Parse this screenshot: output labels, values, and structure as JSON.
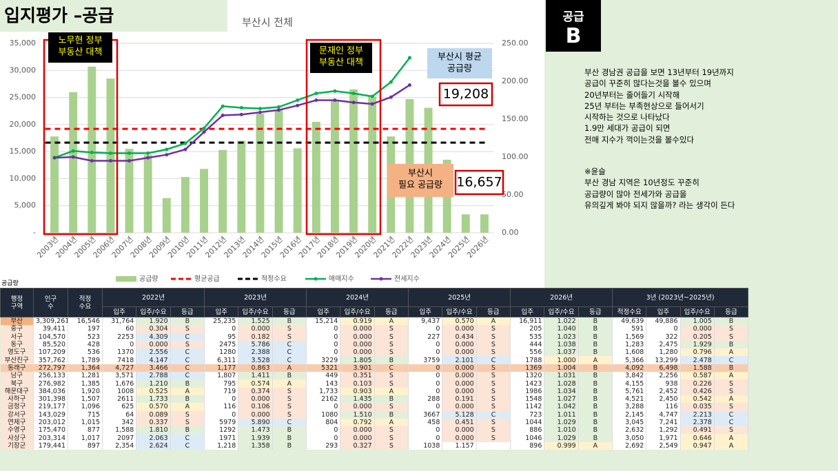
{
  "header": {
    "title": "입지평가 –공급",
    "badge": [
      "공급",
      "B"
    ]
  },
  "chart_data": {
    "type": "combo",
    "subtitle": "부산시 전체",
    "categories": [
      "2003년",
      "2004년",
      "2005년",
      "2006년",
      "2007년",
      "2008년",
      "2009년",
      "2010년",
      "2011년",
      "2012년",
      "2013년",
      "2014년",
      "2015년",
      "2016년",
      "2017년",
      "2018년",
      "2019년",
      "2020년",
      "2021년",
      "2022년",
      "2023년",
      "2024년",
      "2025년",
      "2026년"
    ],
    "series": [
      {
        "name": "공급량",
        "type": "bar",
        "color": "#a9d18e",
        "values": [
          17800,
          26000,
          30700,
          28500,
          15500,
          14400,
          6400,
          10300,
          11800,
          15300,
          17000,
          22000,
          22700,
          15600,
          20500,
          24600,
          26500,
          25200,
          17800,
          24700,
          23100,
          13500,
          3400,
          3400
        ]
      },
      {
        "name": "매매지수",
        "type": "line",
        "axis": "y2",
        "color": "#00b050",
        "values": [
          99,
          108,
          106,
          105,
          105,
          105,
          110,
          118,
          138,
          167,
          165,
          164,
          166,
          175,
          184,
          187,
          184,
          180,
          199,
          231,
          null,
          null,
          null,
          null
        ]
      },
      {
        "name": "전세지수",
        "type": "line",
        "axis": "y2",
        "color": "#7030a0",
        "values": [
          99,
          100,
          95,
          95,
          95,
          99,
          103,
          110,
          133,
          155,
          156,
          159,
          162,
          168,
          175,
          175,
          172,
          170,
          179,
          195,
          null,
          null,
          null,
          null
        ]
      }
    ],
    "reference_lines": [
      {
        "name": "평균공급",
        "color": "#ff0000",
        "value": 19208,
        "label": "19,208"
      },
      {
        "name": "적정수요",
        "color": "#000000",
        "value": 16657,
        "label": "16,657"
      }
    ],
    "ylim": [
      0,
      35000
    ],
    "yticks": [
      {
        "value": 0,
        "label": "-"
      },
      {
        "value": 5000,
        "label": "5,000"
      },
      {
        "value": 10000,
        "label": "10,000"
      },
      {
        "value": 15000,
        "label": "15,000"
      },
      {
        "value": 20000,
        "label": "20,000"
      },
      {
        "value": 25000,
        "label": "25,000"
      },
      {
        "value": 30000,
        "label": "30,000"
      },
      {
        "value": 35000,
        "label": "35,000"
      }
    ],
    "y2lim": [
      0,
      250
    ],
    "y2ticks": [
      {
        "value": 0,
        "label": "0.00"
      },
      {
        "value": 50,
        "label": "50.00"
      },
      {
        "value": 100,
        "label": "100.00"
      },
      {
        "value": 150,
        "label": "150.00"
      },
      {
        "value": 200,
        "label": "200.00"
      },
      {
        "value": 250,
        "label": "250.00"
      }
    ],
    "grid": true,
    "legend": "bottom",
    "annotations": [
      {
        "text": [
          "노무현 정부",
          "부동산 대책"
        ]
      },
      {
        "text": [
          "문재인 정부",
          "부동산 대책"
        ]
      },
      {
        "text": [
          "부산시 평균",
          "공급량"
        ]
      },
      {
        "text": [
          "부산시",
          "필요 공급량"
        ]
      }
    ]
  },
  "notes": [
    "부산 경남권 공급을 보면 13년부터 19년까지",
    "공급이 꾸준히 많다는것을 볼수 있으며",
    "20년부터는 줄어들기 시작해",
    "25년 부터는 부족현상으로 들어서기",
    "시작하는 것으로 나타났다",
    "1.9만 세대가 공급이 되면",
    "전매 지수가 꺽이는것을 볼수있다"
  ],
  "notes2": [
    "※윤슬",
    "부산 경남 지역은 10년정도 꾸준히",
    "공급량이 많아 전세가와 공급을",
    "유의깊게 봐야 되지 않을까? 라는 생각이 든다"
  ],
  "table": {
    "caption": "공급량",
    "top": [
      "행정\n구역",
      "인구\n수",
      "적정\n수요",
      "2022년",
      "2023년",
      "2024년",
      "2025년",
      "2026년",
      "3년 (2023년~2025년)"
    ],
    "sub_year": [
      "입주",
      "입주/수요",
      "등급"
    ],
    "sub_3yr": [
      "적정수요",
      "입주",
      "입주/수요",
      "등급"
    ],
    "rows": [
      [
        "부산",
        "3,309,261",
        "16,546",
        "31,764",
        "1.920",
        "B",
        "25,235",
        "1.525",
        "B",
        "15,214",
        "0.919",
        "A",
        "9,437",
        "0.570",
        "A",
        "16,911",
        "1.022",
        "B",
        "49,639",
        "49,886",
        "1.005",
        "B"
      ],
      [
        "중구",
        "39,411",
        "197",
        "60",
        "0.304",
        "S",
        "0",
        "0.000",
        "S",
        "0",
        "0.000",
        "S",
        "0",
        "0.000",
        "S",
        "205",
        "1.040",
        "B",
        "591",
        "0",
        "0.000",
        "S"
      ],
      [
        "서구",
        "104,570",
        "523",
        "2253",
        "4.309",
        "C",
        "95",
        "0.182",
        "S",
        "0",
        "0.000",
        "S",
        "227",
        "0.434",
        "S",
        "535",
        "1.023",
        "B",
        "1,569",
        "322",
        "0.205",
        "S"
      ],
      [
        "동구",
        "85,520",
        "428",
        "0",
        "0.000",
        "S",
        "2475",
        "5.786",
        "C",
        "0",
        "0.000",
        "S",
        "0",
        "0.000",
        "S",
        "444",
        "1.038",
        "B",
        "1,283",
        "2,475",
        "1.929",
        "B"
      ],
      [
        "영도구",
        "107,209",
        "536",
        "1370",
        "2.556",
        "C",
        "1280",
        "2.388",
        "C",
        "0",
        "0.000",
        "S",
        "0",
        "0.000",
        "S",
        "556",
        "1.037",
        "B",
        "1,608",
        "1,280",
        "0.796",
        "A"
      ],
      [
        "부산진구",
        "357,762",
        "1,789",
        "7418",
        "4.147",
        "C",
        "6,311",
        "3.528",
        "C",
        "3229",
        "1.805",
        "B",
        "3759",
        "2.101",
        "C",
        "1788",
        "1.000",
        "A",
        "5,366",
        "13,299",
        "2.478",
        "C"
      ],
      [
        "동래구",
        "272,797",
        "1,364",
        "4,727",
        "3.466",
        "C",
        "1,177",
        "0.863",
        "A",
        "5321",
        "3.901",
        "C",
        "0",
        "0.000",
        "S",
        "1369",
        "1.004",
        "B",
        "4,092",
        "6,498",
        "1.588",
        "B"
      ],
      [
        "남구",
        "256,133",
        "1,281",
        "3,571",
        "2.788",
        "C",
        "1,807",
        "1.411",
        "B",
        "449",
        "0.351",
        "S",
        "0",
        "0.000",
        "S",
        "1320",
        "1.031",
        "B",
        "3,842",
        "2,256",
        "0.587",
        "A"
      ],
      [
        "북구",
        "276,982",
        "1,385",
        "1,676",
        "1.210",
        "B",
        "795",
        "0.574",
        "A",
        "143",
        "0.103",
        "S",
        "0",
        "0.000",
        "S",
        "1423",
        "1.028",
        "B",
        "4,155",
        "938",
        "0.226",
        "S"
      ],
      [
        "해운대구",
        "384,036",
        "1,920",
        "1008",
        "0.525",
        "A",
        "719",
        "0.374",
        "S",
        "1,733",
        "0.903",
        "A",
        "0",
        "0.000",
        "S",
        "1986",
        "1.034",
        "B",
        "5,761",
        "2,452",
        "0.426",
        "S"
      ],
      [
        "사하구",
        "301,398",
        "1,507",
        "2611",
        "1.733",
        "B",
        "0",
        "0.000",
        "S",
        "2162",
        "1.435",
        "B",
        "288",
        "0.191",
        "S",
        "1548",
        "1.027",
        "B",
        "4,521",
        "2,450",
        "0.542",
        "A"
      ],
      [
        "금정구",
        "219,177",
        "1,096",
        "625",
        "0.570",
        "A",
        "116",
        "0.106",
        "S",
        "0",
        "0.000",
        "S",
        "0",
        "0.000",
        "S",
        "1142",
        "1.042",
        "B",
        "3,288",
        "116",
        "0.035",
        "S"
      ],
      [
        "강서구",
        "143,029",
        "715",
        "64",
        "0.089",
        "S",
        "0",
        "0.000",
        "S",
        "1080",
        "1.510",
        "B",
        "3667",
        "5.128",
        "C",
        "723",
        "1.011",
        "B",
        "2,145",
        "4,747",
        "2.213",
        "C"
      ],
      [
        "연제구",
        "203,012",
        "1,015",
        "342",
        "0.337",
        "S",
        "5979",
        "5.890",
        "C",
        "804",
        "0.792",
        "A",
        "458",
        "0.451",
        "S",
        "1044",
        "1.029",
        "B",
        "3,045",
        "7,241",
        "2.378",
        "C"
      ],
      [
        "수영구",
        "175,470",
        "877",
        "1,588",
        "1.810",
        "B",
        "1292",
        "1.473",
        "B",
        "0",
        "0.000",
        "S",
        "0",
        "0.000",
        "S",
        "886",
        "1.010",
        "B",
        "2,632",
        "1,292",
        "0.491",
        "S"
      ],
      [
        "사상구",
        "203,314",
        "1,017",
        "2097",
        "2.063",
        "C",
        "1971",
        "1.939",
        "B",
        "0",
        "0.000",
        "S",
        "0",
        "0.000",
        "S",
        "1046",
        "1.029",
        "B",
        "3,050",
        "1,971",
        "0.646",
        "A"
      ],
      [
        "기장군",
        "179,441",
        "897",
        "2,354",
        "2.624",
        "C",
        "1,218",
        "1.358",
        "B",
        "293",
        "0.327",
        "S",
        "1038",
        "1.157",
        null,
        "896",
        "0.999",
        "A",
        "2,692",
        "2,549",
        "0.947",
        "A"
      ]
    ]
  }
}
